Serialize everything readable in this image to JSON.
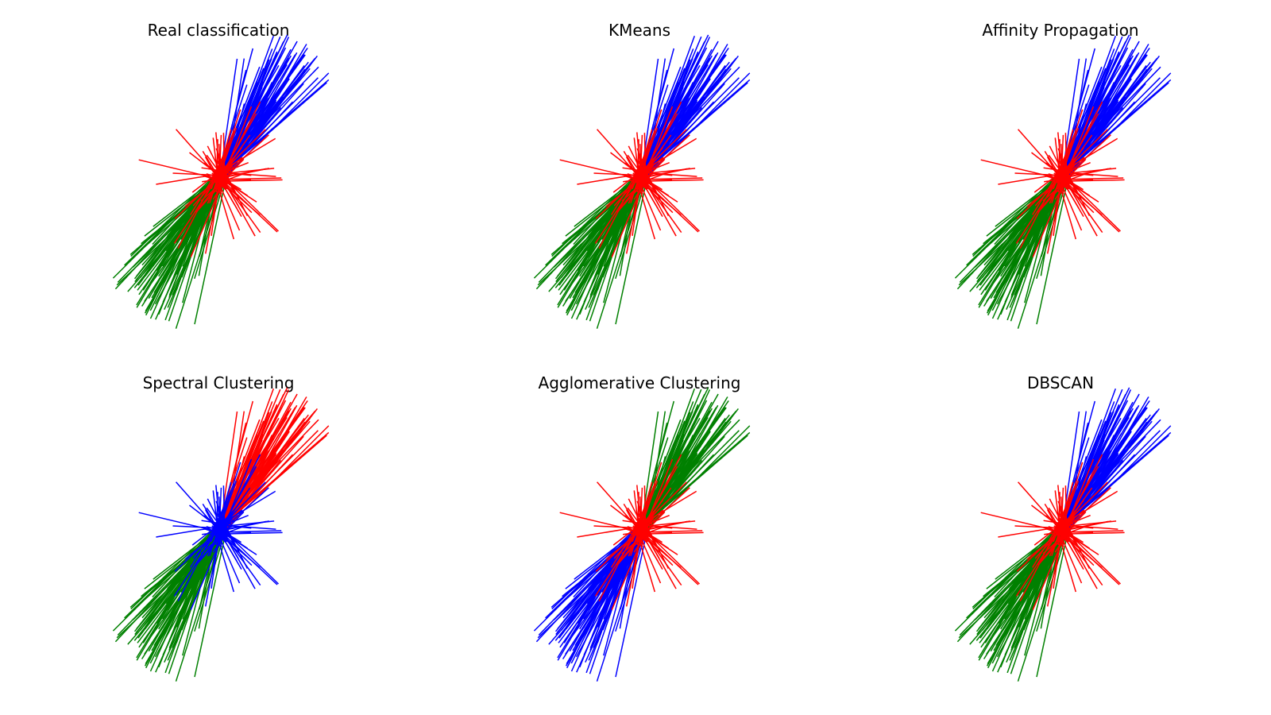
{
  "figure": {
    "background": "#ffffff",
    "layout": "2 rows x 3 columns"
  },
  "chart_data": [
    {
      "type": "radial-line",
      "title": "Real classification",
      "axes": "off",
      "legend": "none",
      "cluster_colors": [
        "#0000ff",
        "#ff0000",
        "#008000"
      ],
      "series": [
        {
          "color": "#0000ff",
          "direction": "upper-right",
          "mean_angle_deg": 58,
          "spread_deg": 18,
          "length_min": 0.3,
          "length_max": 1.0
        },
        {
          "color": "#ff0000",
          "direction": "center",
          "mean_angle_deg": 0,
          "spread_deg": 180,
          "length_min": 0.05,
          "length_max": 0.55
        },
        {
          "color": "#008000",
          "direction": "lower-left",
          "mean_angle_deg": 238,
          "spread_deg": 18,
          "length_min": 0.3,
          "length_max": 1.0
        }
      ]
    },
    {
      "type": "radial-line",
      "title": "KMeans",
      "axes": "off",
      "legend": "none",
      "cluster_colors": [
        "#0000ff",
        "#ff0000",
        "#008000"
      ],
      "series": [
        {
          "color": "#0000ff",
          "direction": "upper-right",
          "mean_angle_deg": 58,
          "spread_deg": 18,
          "length_min": 0.3,
          "length_max": 1.0
        },
        {
          "color": "#ff0000",
          "direction": "center",
          "mean_angle_deg": 0,
          "spread_deg": 180,
          "length_min": 0.05,
          "length_max": 0.55
        },
        {
          "color": "#008000",
          "direction": "lower-left",
          "mean_angle_deg": 238,
          "spread_deg": 18,
          "length_min": 0.3,
          "length_max": 1.0
        }
      ]
    },
    {
      "type": "radial-line",
      "title": "Affinity Propagation",
      "axes": "off",
      "legend": "none",
      "cluster_colors": [
        "#0000ff",
        "#ff0000",
        "#008000"
      ],
      "series": [
        {
          "color": "#0000ff",
          "direction": "upper-right",
          "mean_angle_deg": 58,
          "spread_deg": 18,
          "length_min": 0.3,
          "length_max": 1.0
        },
        {
          "color": "#ff0000",
          "direction": "center",
          "mean_angle_deg": 0,
          "spread_deg": 180,
          "length_min": 0.05,
          "length_max": 0.55
        },
        {
          "color": "#008000",
          "direction": "lower-left",
          "mean_angle_deg": 238,
          "spread_deg": 18,
          "length_min": 0.3,
          "length_max": 1.0
        }
      ]
    },
    {
      "type": "radial-line",
      "title": "Spectral Clustering",
      "axes": "off",
      "legend": "none",
      "cluster_colors": [
        "#ff0000",
        "#0000ff",
        "#008000"
      ],
      "series": [
        {
          "color": "#ff0000",
          "direction": "upper-right",
          "mean_angle_deg": 58,
          "spread_deg": 18,
          "length_min": 0.3,
          "length_max": 1.0
        },
        {
          "color": "#0000ff",
          "direction": "center",
          "mean_angle_deg": 0,
          "spread_deg": 180,
          "length_min": 0.05,
          "length_max": 0.55
        },
        {
          "color": "#008000",
          "direction": "lower-left",
          "mean_angle_deg": 238,
          "spread_deg": 18,
          "length_min": 0.3,
          "length_max": 1.0
        }
      ]
    },
    {
      "type": "radial-line",
      "title": "Agglomerative Clustering",
      "axes": "off",
      "legend": "none",
      "cluster_colors": [
        "#008000",
        "#ff0000",
        "#0000ff"
      ],
      "series": [
        {
          "color": "#008000",
          "direction": "upper-right",
          "mean_angle_deg": 58,
          "spread_deg": 18,
          "length_min": 0.3,
          "length_max": 1.0
        },
        {
          "color": "#ff0000",
          "direction": "center",
          "mean_angle_deg": 0,
          "spread_deg": 180,
          "length_min": 0.05,
          "length_max": 0.55
        },
        {
          "color": "#0000ff",
          "direction": "lower-left",
          "mean_angle_deg": 238,
          "spread_deg": 18,
          "length_min": 0.3,
          "length_max": 1.0
        }
      ]
    },
    {
      "type": "radial-line",
      "title": "DBSCAN",
      "axes": "off",
      "legend": "none",
      "cluster_colors": [
        "#0000ff",
        "#ff0000",
        "#008000"
      ],
      "series": [
        {
          "color": "#0000ff",
          "direction": "upper-right",
          "mean_angle_deg": 58,
          "spread_deg": 18,
          "length_min": 0.3,
          "length_max": 1.0
        },
        {
          "color": "#ff0000",
          "direction": "center",
          "mean_angle_deg": 0,
          "spread_deg": 180,
          "length_min": 0.05,
          "length_max": 0.55
        },
        {
          "color": "#008000",
          "direction": "lower-left",
          "mean_angle_deg": 238,
          "spread_deg": 18,
          "length_min": 0.3,
          "length_max": 1.0
        }
      ]
    }
  ]
}
